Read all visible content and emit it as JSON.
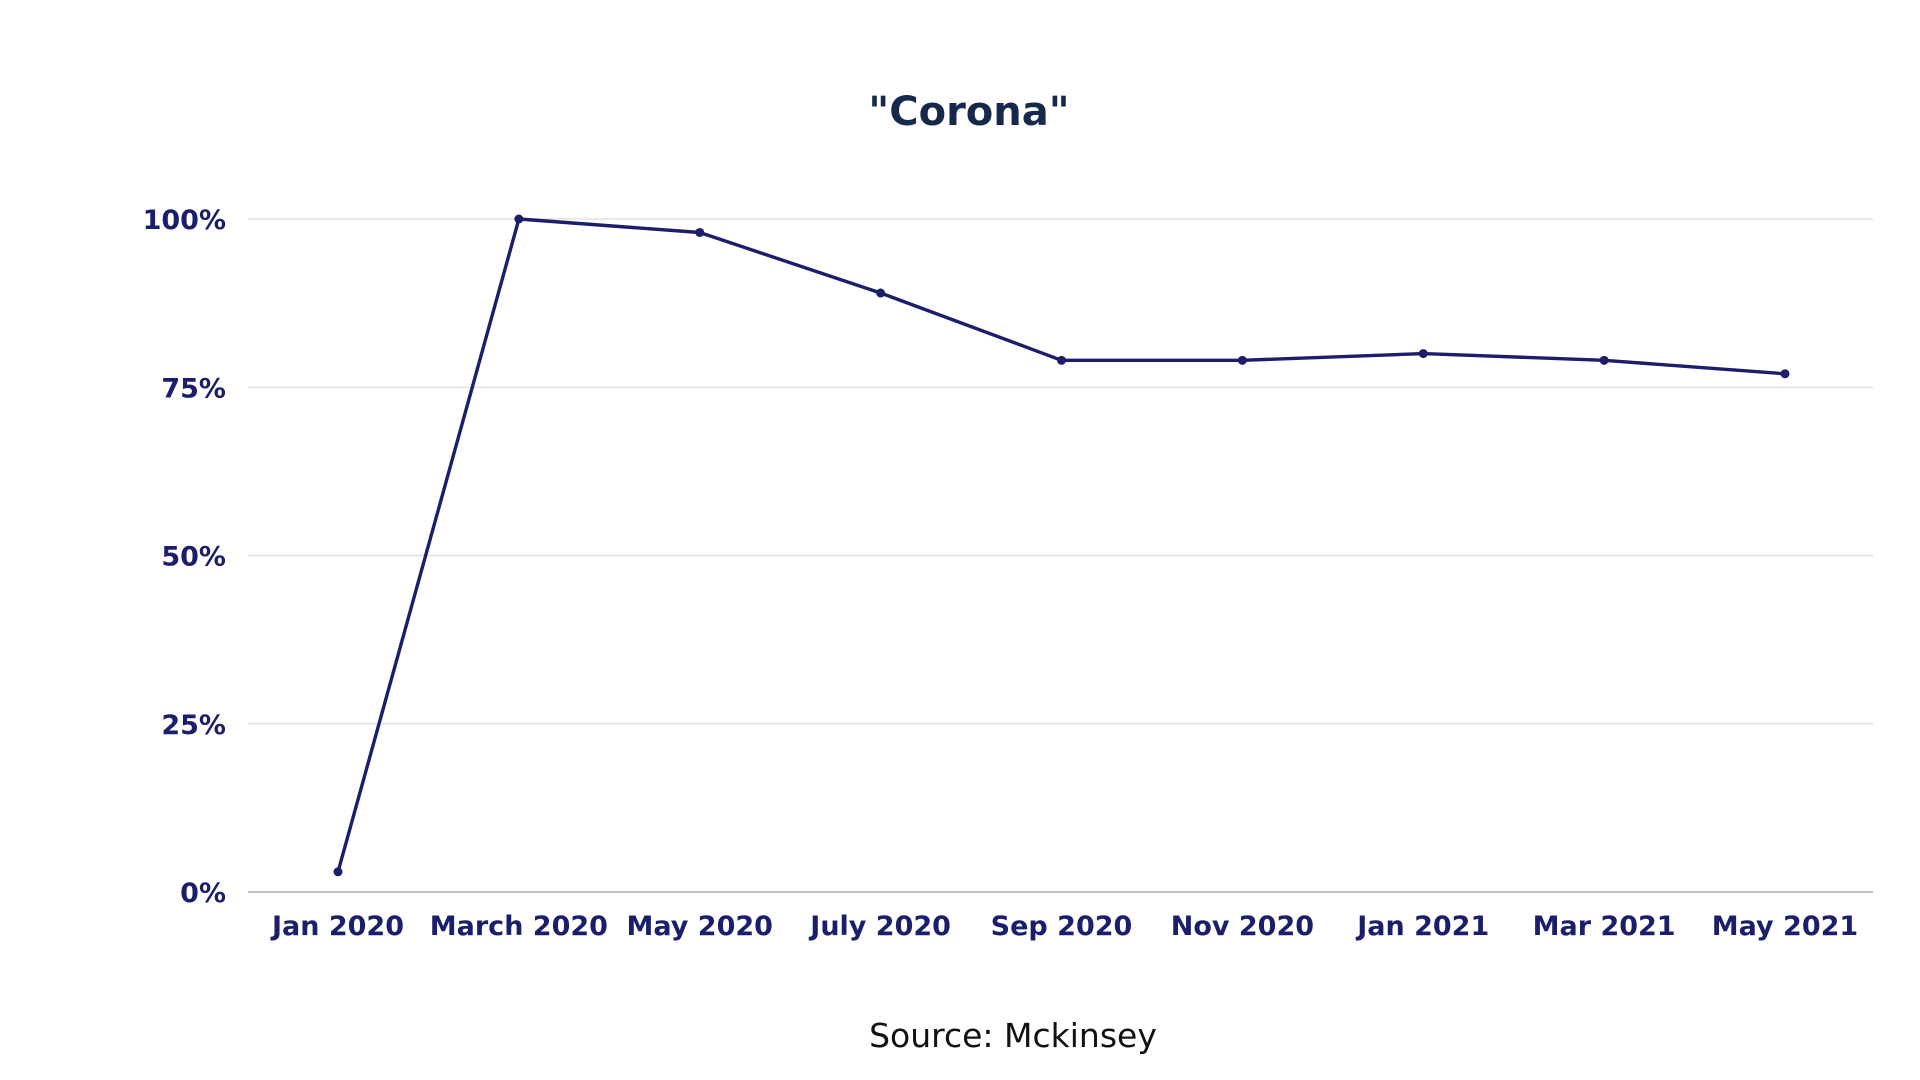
{
  "chart_data": {
    "type": "line",
    "title": "\"Corona\"",
    "source": "Source: Mckinsey",
    "xlabel": "",
    "ylabel": "",
    "categories": [
      "Jan 2020",
      "March 2020",
      "May 2020",
      "July 2020",
      "Sep 2020",
      "Nov 2020",
      "Jan 2021",
      "Mar 2021",
      "May 2021"
    ],
    "series": [
      {
        "values": [
          3,
          100,
          98,
          89,
          79,
          79,
          80,
          79,
          77
        ]
      }
    ],
    "y_ticks": [
      0,
      25,
      50,
      75,
      100
    ],
    "y_tick_labels": [
      "0%",
      "25%",
      "50%",
      "75%",
      "100%"
    ],
    "ylim": [
      0,
      100
    ],
    "grid": true,
    "legend": "bottom-left",
    "colors": {
      "series": "#1b1f6b",
      "title": "#16294a",
      "ticks": "#1b1f6b",
      "grid": "#dcdcdc",
      "axis": "#a9a9b2"
    }
  }
}
